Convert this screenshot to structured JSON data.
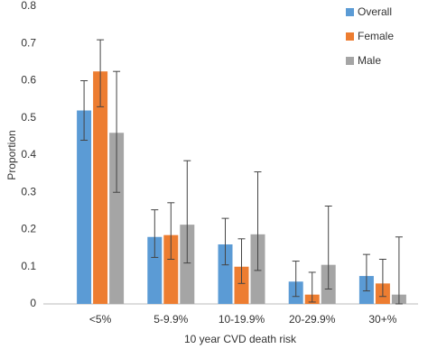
{
  "chart_data": {
    "type": "bar",
    "x_label": "10 year CVD death risk",
    "y_label": "Proportion",
    "categories": [
      "<5%",
      "5-9.9%",
      "10-19.9%",
      "20-29.9%",
      "30+%"
    ],
    "series": [
      {
        "name": "Overall",
        "color": "#5b9bd5",
        "values": [
          0.52,
          0.18,
          0.16,
          0.06,
          0.075
        ],
        "lower": [
          0.44,
          0.125,
          0.105,
          0.02,
          0.035
        ],
        "upper": [
          0.6,
          0.253,
          0.23,
          0.115,
          0.133
        ]
      },
      {
        "name": "Female",
        "color": "#ed7d31",
        "values": [
          0.625,
          0.185,
          0.1,
          0.025,
          0.055
        ],
        "lower": [
          0.53,
          0.12,
          0.055,
          0.005,
          0.02
        ],
        "upper": [
          0.71,
          0.272,
          0.175,
          0.085,
          0.12
        ]
      },
      {
        "name": "Male",
        "color": "#a5a5a5",
        "values": [
          0.46,
          0.213,
          0.187,
          0.105,
          0.025
        ],
        "lower": [
          0.3,
          0.11,
          0.09,
          0.04,
          0
        ],
        "upper": [
          0.625,
          0.385,
          0.355,
          0.263,
          0.18
        ]
      }
    ],
    "ylim": [
      0,
      0.8
    ],
    "yticks": [
      0,
      0.1,
      0.2,
      0.3,
      0.4,
      0.5,
      0.6,
      0.7,
      0.8
    ],
    "grid": false,
    "legend": "top-right"
  }
}
